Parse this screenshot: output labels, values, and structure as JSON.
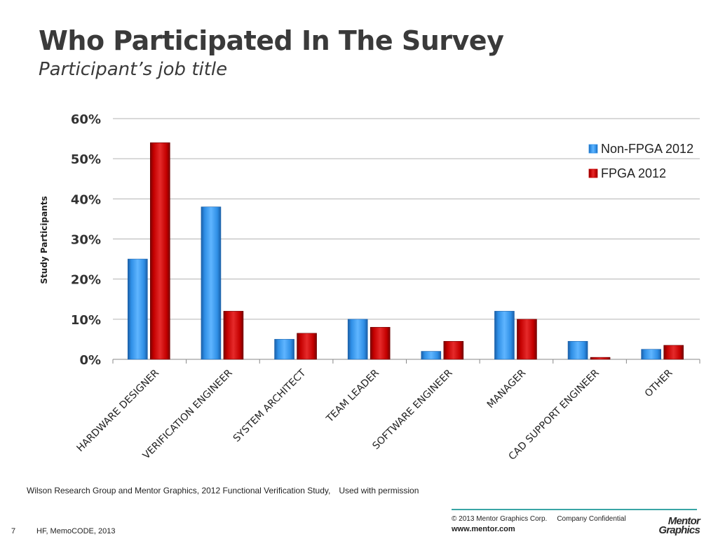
{
  "slide": {
    "title": "Who Participated In The Survey",
    "subtitle": "Participant’s job title",
    "source_note": "Wilson Research Group and Mentor Graphics, 2012 Functional Verification Study,",
    "permission_note": "Used with permission",
    "copyright": "© 2013 Mentor Graphics Corp.",
    "confidential": "Company Confidential",
    "website": "www.mentor.com",
    "logo_line1": "Mentor",
    "logo_line2": "Graphics",
    "slide_number": "7",
    "event": "HF, MemoCODE, 2013"
  },
  "colors": {
    "non_fpga": "#2f8fe6",
    "fpga": "#c40000",
    "grid": "#b3b3b3",
    "accent_line": "#3aa6a6"
  },
  "chart_data": {
    "type": "bar",
    "ylabel": "Study Participants",
    "ylim": [
      0,
      60
    ],
    "yticks": [
      "0%",
      "10%",
      "20%",
      "30%",
      "40%",
      "50%",
      "60%"
    ],
    "grid": true,
    "legend_position": "top-right",
    "categories": [
      "HARDWARE DESIGNER",
      "VERIFICATION ENGINEER",
      "SYSTEM ARCHITECT",
      "TEAM LEADER",
      "SOFTWARE ENGINEER",
      "MANAGER",
      "CAD SUPPORT ENGINEER",
      "OTHER"
    ],
    "series": [
      {
        "name": "Non-FPGA 2012",
        "values": [
          25,
          38,
          5,
          10,
          2,
          12,
          4.5,
          2.5
        ]
      },
      {
        "name": "FPGA 2012",
        "values": [
          54,
          12,
          6.5,
          8,
          4.5,
          10,
          0.5,
          3.5
        ]
      }
    ]
  }
}
